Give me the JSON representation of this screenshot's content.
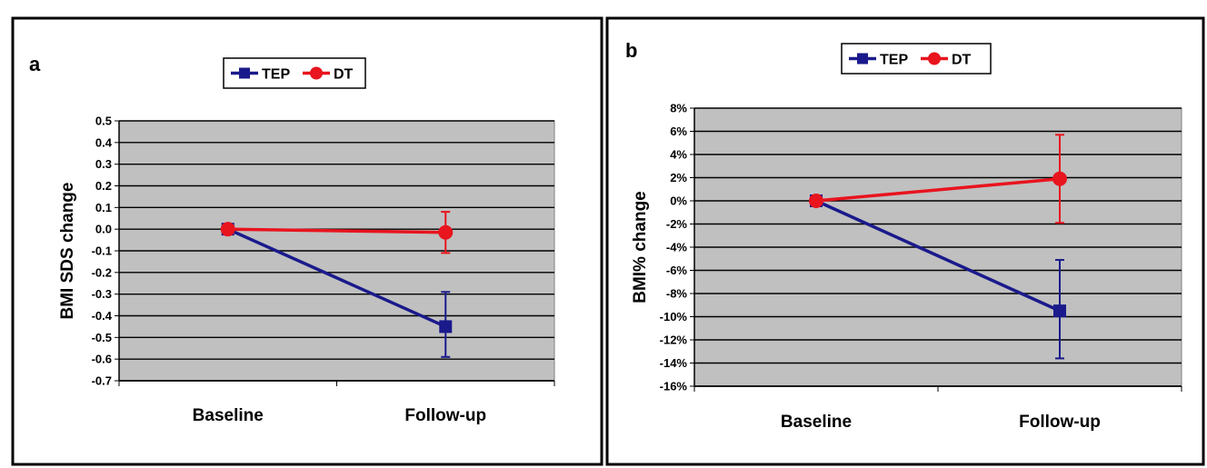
{
  "colors": {
    "tep": "#1a1a8c",
    "dt": "#e8141e",
    "plot_bg": "#c0c0c0",
    "frame": "#000000"
  },
  "chart_data": [
    {
      "type": "line",
      "panel_letter": "a",
      "ylabel": "BMI SDS change",
      "xlabel": "",
      "categories": [
        "Baseline",
        "Follow-up"
      ],
      "ylim": [
        -0.7,
        0.5
      ],
      "yticks": [
        0.5,
        0.4,
        0.3,
        0.2,
        0.1,
        0.0,
        -0.1,
        -0.2,
        -0.3,
        -0.4,
        -0.5,
        -0.6,
        -0.7
      ],
      "ytick_labels": [
        "0.5",
        "0.4",
        "0.3",
        "0.2",
        "0.1",
        "0.0",
        "-0.1",
        "-0.2",
        "-0.3",
        "-0.4",
        "-0.5",
        "-0.6",
        "-0.7"
      ],
      "grid": true,
      "legend_position": "top",
      "series": [
        {
          "name": "TEP",
          "marker": "square",
          "color": "#1a1a8c",
          "values": [
            0.0,
            -0.45
          ],
          "errors": [
            null,
            [
              -0.59,
              -0.29
            ]
          ]
        },
        {
          "name": "DT",
          "marker": "circle",
          "color": "#e8141e",
          "values": [
            0.0,
            -0.015
          ],
          "errors": [
            null,
            [
              -0.11,
              0.08
            ]
          ]
        }
      ]
    },
    {
      "type": "line",
      "panel_letter": "b",
      "ylabel": "BMI% change",
      "xlabel": "",
      "categories": [
        "Baseline",
        "Follow-up"
      ],
      "ylim": [
        -16,
        8
      ],
      "yticks": [
        8,
        6,
        4,
        2,
        0,
        -2,
        -4,
        -6,
        -8,
        -10,
        -12,
        -14,
        -16
      ],
      "ytick_labels": [
        "8%",
        "6%",
        "4%",
        "2%",
        "0%",
        "-2%",
        "-4%",
        "-6%",
        "-8%",
        "-10%",
        "-12%",
        "-14%",
        "-16%"
      ],
      "grid": true,
      "legend_position": "top",
      "series": [
        {
          "name": "TEP",
          "marker": "square",
          "color": "#1a1a8c",
          "values": [
            0.0,
            -9.5
          ],
          "errors": [
            null,
            [
              -13.6,
              -5.1
            ]
          ]
        },
        {
          "name": "DT",
          "marker": "circle",
          "color": "#e8141e",
          "values": [
            0.0,
            1.9
          ],
          "errors": [
            null,
            [
              -1.9,
              5.7
            ]
          ]
        }
      ]
    }
  ]
}
